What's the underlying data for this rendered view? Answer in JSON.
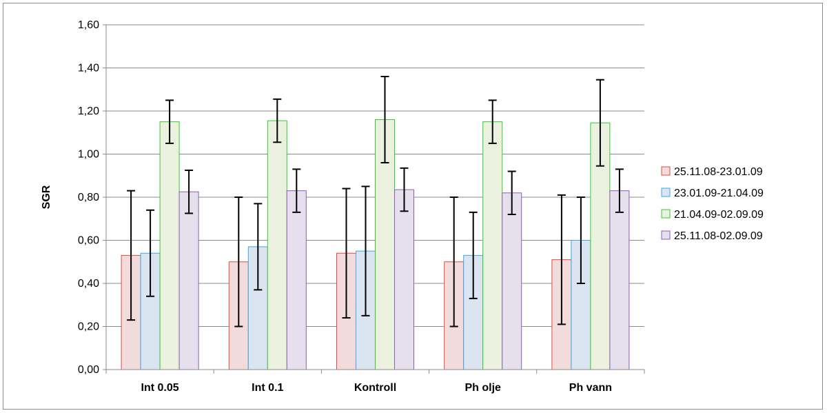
{
  "chart_data": {
    "type": "bar",
    "title": "",
    "xlabel": "",
    "ylabel": "SGR",
    "ylim": [
      0,
      1.6
    ],
    "ytick_step": 0.2,
    "grid": true,
    "legend_position": "right",
    "categories": [
      "Int 0.05",
      "Int 0.1",
      "Kontroll",
      "Ph olje",
      "Ph vann"
    ],
    "series": [
      {
        "name": "25.11.08-23.01.09",
        "fill": "#f2dcdb",
        "stroke": "#e8453c",
        "values": [
          0.53,
          0.5,
          0.54,
          0.5,
          0.51
        ],
        "errors": [
          0.3,
          0.3,
          0.3,
          0.3,
          0.3
        ]
      },
      {
        "name": "23.01.09-21.04.09",
        "fill": "#dbe5f1",
        "stroke": "#3aa7e8",
        "values": [
          0.54,
          0.57,
          0.55,
          0.53,
          0.6
        ],
        "errors": [
          0.2,
          0.2,
          0.3,
          0.2,
          0.2
        ]
      },
      {
        "name": "21.04.09-02.09.09",
        "fill": "#ebf1de",
        "stroke": "#2ecc2e",
        "values": [
          1.15,
          1.155,
          1.16,
          1.15,
          1.145
        ],
        "errors": [
          0.1,
          0.1,
          0.2,
          0.1,
          0.2
        ]
      },
      {
        "name": "25.11.08-02.09.09",
        "fill": "#e5e0ec",
        "stroke": "#8e5bb5",
        "values": [
          0.825,
          0.83,
          0.835,
          0.82,
          0.83
        ],
        "errors": [
          0.1,
          0.1,
          0.1,
          0.1,
          0.1
        ]
      }
    ],
    "ytick_labels": [
      "0,00",
      "0,20",
      "0,40",
      "0,60",
      "0,80",
      "1,00",
      "1,20",
      "1,40",
      "1,60"
    ]
  }
}
